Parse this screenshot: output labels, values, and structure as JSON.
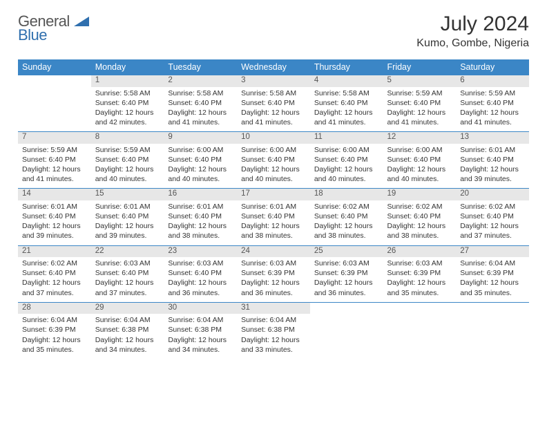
{
  "logo": {
    "word1": "General",
    "word2": "Blue",
    "triangle_color": "#2f6fae"
  },
  "title": "July 2024",
  "location": "Kumo, Gombe, Nigeria",
  "header_bg": "#3b86c6",
  "daynum_bg": "#e7e7e7",
  "weekdays": [
    "Sunday",
    "Monday",
    "Tuesday",
    "Wednesday",
    "Thursday",
    "Friday",
    "Saturday"
  ],
  "weeks": [
    [
      null,
      {
        "n": "1",
        "sr": "5:58 AM",
        "ss": "6:40 PM",
        "dl": "12 hours and 42 minutes."
      },
      {
        "n": "2",
        "sr": "5:58 AM",
        "ss": "6:40 PM",
        "dl": "12 hours and 41 minutes."
      },
      {
        "n": "3",
        "sr": "5:58 AM",
        "ss": "6:40 PM",
        "dl": "12 hours and 41 minutes."
      },
      {
        "n": "4",
        "sr": "5:58 AM",
        "ss": "6:40 PM",
        "dl": "12 hours and 41 minutes."
      },
      {
        "n": "5",
        "sr": "5:59 AM",
        "ss": "6:40 PM",
        "dl": "12 hours and 41 minutes."
      },
      {
        "n": "6",
        "sr": "5:59 AM",
        "ss": "6:40 PM",
        "dl": "12 hours and 41 minutes."
      }
    ],
    [
      {
        "n": "7",
        "sr": "5:59 AM",
        "ss": "6:40 PM",
        "dl": "12 hours and 41 minutes."
      },
      {
        "n": "8",
        "sr": "5:59 AM",
        "ss": "6:40 PM",
        "dl": "12 hours and 40 minutes."
      },
      {
        "n": "9",
        "sr": "6:00 AM",
        "ss": "6:40 PM",
        "dl": "12 hours and 40 minutes."
      },
      {
        "n": "10",
        "sr": "6:00 AM",
        "ss": "6:40 PM",
        "dl": "12 hours and 40 minutes."
      },
      {
        "n": "11",
        "sr": "6:00 AM",
        "ss": "6:40 PM",
        "dl": "12 hours and 40 minutes."
      },
      {
        "n": "12",
        "sr": "6:00 AM",
        "ss": "6:40 PM",
        "dl": "12 hours and 40 minutes."
      },
      {
        "n": "13",
        "sr": "6:01 AM",
        "ss": "6:40 PM",
        "dl": "12 hours and 39 minutes."
      }
    ],
    [
      {
        "n": "14",
        "sr": "6:01 AM",
        "ss": "6:40 PM",
        "dl": "12 hours and 39 minutes."
      },
      {
        "n": "15",
        "sr": "6:01 AM",
        "ss": "6:40 PM",
        "dl": "12 hours and 39 minutes."
      },
      {
        "n": "16",
        "sr": "6:01 AM",
        "ss": "6:40 PM",
        "dl": "12 hours and 38 minutes."
      },
      {
        "n": "17",
        "sr": "6:01 AM",
        "ss": "6:40 PM",
        "dl": "12 hours and 38 minutes."
      },
      {
        "n": "18",
        "sr": "6:02 AM",
        "ss": "6:40 PM",
        "dl": "12 hours and 38 minutes."
      },
      {
        "n": "19",
        "sr": "6:02 AM",
        "ss": "6:40 PM",
        "dl": "12 hours and 38 minutes."
      },
      {
        "n": "20",
        "sr": "6:02 AM",
        "ss": "6:40 PM",
        "dl": "12 hours and 37 minutes."
      }
    ],
    [
      {
        "n": "21",
        "sr": "6:02 AM",
        "ss": "6:40 PM",
        "dl": "12 hours and 37 minutes."
      },
      {
        "n": "22",
        "sr": "6:03 AM",
        "ss": "6:40 PM",
        "dl": "12 hours and 37 minutes."
      },
      {
        "n": "23",
        "sr": "6:03 AM",
        "ss": "6:40 PM",
        "dl": "12 hours and 36 minutes."
      },
      {
        "n": "24",
        "sr": "6:03 AM",
        "ss": "6:39 PM",
        "dl": "12 hours and 36 minutes."
      },
      {
        "n": "25",
        "sr": "6:03 AM",
        "ss": "6:39 PM",
        "dl": "12 hours and 36 minutes."
      },
      {
        "n": "26",
        "sr": "6:03 AM",
        "ss": "6:39 PM",
        "dl": "12 hours and 35 minutes."
      },
      {
        "n": "27",
        "sr": "6:04 AM",
        "ss": "6:39 PM",
        "dl": "12 hours and 35 minutes."
      }
    ],
    [
      {
        "n": "28",
        "sr": "6:04 AM",
        "ss": "6:39 PM",
        "dl": "12 hours and 35 minutes."
      },
      {
        "n": "29",
        "sr": "6:04 AM",
        "ss": "6:38 PM",
        "dl": "12 hours and 34 minutes."
      },
      {
        "n": "30",
        "sr": "6:04 AM",
        "ss": "6:38 PM",
        "dl": "12 hours and 34 minutes."
      },
      {
        "n": "31",
        "sr": "6:04 AM",
        "ss": "6:38 PM",
        "dl": "12 hours and 33 minutes."
      },
      null,
      null,
      null
    ]
  ],
  "labels": {
    "sunrise": "Sunrise:",
    "sunset": "Sunset:",
    "daylight": "Daylight:"
  }
}
